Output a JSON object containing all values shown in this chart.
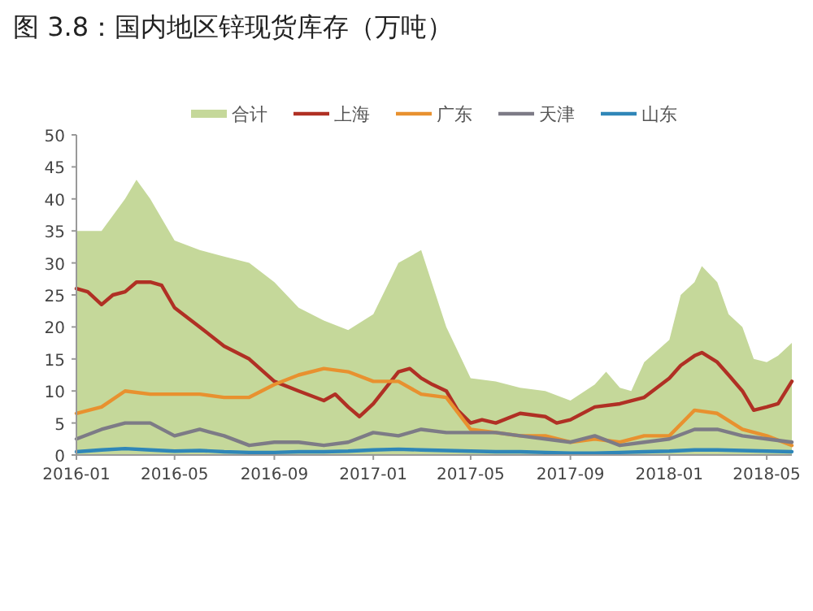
{
  "chart_data": {
    "type": "line",
    "title": "图 3.8：国内地区锌现货库存（万吨）",
    "x": [
      "2016-01",
      "2016-02",
      "2016-03",
      "2016-04",
      "2016-05",
      "2016-06",
      "2016-07",
      "2016-08",
      "2016-09",
      "2016-10",
      "2016-11",
      "2016-12",
      "2017-01",
      "2017-02",
      "2017-03",
      "2017-04",
      "2017-05",
      "2017-06",
      "2017-07",
      "2017-08",
      "2017-09",
      "2017-10",
      "2017-11",
      "2017-12",
      "2018-01",
      "2018-02",
      "2018-03",
      "2018-04",
      "2018-05",
      "2018-06"
    ],
    "series": [
      {
        "name": "合计",
        "type": "area",
        "color": "#c5d89a",
        "x": [
          "2016-01",
          "2016-02",
          "2016-03",
          "2016-03-15",
          "2016-04",
          "2016-05",
          "2016-06",
          "2016-07",
          "2016-08",
          "2016-09",
          "2016-10",
          "2016-11",
          "2016-12",
          "2017-01",
          "2017-02",
          "2017-03",
          "2017-04",
          "2017-05",
          "2017-06",
          "2017-07",
          "2017-08",
          "2017-09",
          "2017-10",
          "2017-10-15",
          "2017-11",
          "2017-11-15",
          "2017-12",
          "2018-01",
          "2018-01-15",
          "2018-02",
          "2018-02-10",
          "2018-03",
          "2018-03-15",
          "2018-04",
          "2018-04-15",
          "2018-05",
          "2018-05-15",
          "2018-06"
        ],
        "values": [
          35,
          35,
          40,
          43,
          40,
          33.5,
          32,
          31,
          30,
          27,
          23,
          21,
          19.5,
          22,
          30,
          32,
          20,
          12,
          11.5,
          10.5,
          10,
          8.5,
          11,
          13,
          10.5,
          10,
          14.5,
          18,
          25,
          27,
          29.5,
          27,
          22,
          20,
          15,
          14.5,
          15.5,
          17.5
        ]
      },
      {
        "name": "上海",
        "color": "#b03024",
        "x": [
          "2016-01",
          "2016-01-15",
          "2016-02",
          "2016-02-15",
          "2016-03",
          "2016-03-15",
          "2016-04",
          "2016-04-15",
          "2016-05",
          "2016-06",
          "2016-07",
          "2016-08",
          "2016-09",
          "2016-10",
          "2016-11",
          "2016-11-15",
          "2016-12",
          "2016-12-15",
          "2017-01",
          "2017-02",
          "2017-02-15",
          "2017-03",
          "2017-03-15",
          "2017-04",
          "2017-04-15",
          "2017-05",
          "2017-05-15",
          "2017-06",
          "2017-07",
          "2017-08",
          "2017-08-15",
          "2017-09",
          "2017-10",
          "2017-11",
          "2017-12",
          "2018-01",
          "2018-01-15",
          "2018-02",
          "2018-02-10",
          "2018-03",
          "2018-03-15",
          "2018-04",
          "2018-04-15",
          "2018-05",
          "2018-05-15",
          "2018-06"
        ],
        "values": [
          26,
          25.5,
          23.5,
          25,
          25.5,
          27,
          27,
          26.5,
          23,
          20,
          17,
          15,
          11.5,
          10,
          8.5,
          9.5,
          7.5,
          6,
          8,
          13,
          13.5,
          12,
          11,
          10,
          7,
          5,
          5.5,
          5,
          6.5,
          6,
          5,
          5.5,
          7.5,
          8,
          9,
          12,
          14,
          15.5,
          16,
          14.5,
          12.5,
          10,
          7,
          7.5,
          8,
          11.5
        ]
      },
      {
        "name": "广东",
        "color": "#e8912f",
        "values": [
          6.5,
          7.5,
          10,
          9.5,
          9.5,
          9.5,
          9,
          9,
          11,
          12.5,
          13.5,
          13,
          11.5,
          11.5,
          9.5,
          9,
          4,
          3.5,
          3,
          3,
          2,
          2.5,
          2,
          3,
          3,
          7,
          6.5,
          4,
          3,
          1.5
        ]
      },
      {
        "name": "天津",
        "color": "#7d7b86",
        "values": [
          2.5,
          4,
          5,
          5,
          3,
          4,
          3,
          1.5,
          2,
          2,
          1.5,
          2,
          3.5,
          3,
          4,
          3.5,
          3.5,
          3.5,
          3,
          2.5,
          2,
          3,
          1.5,
          2,
          2.5,
          4,
          4,
          3,
          2.5,
          2
        ]
      },
      {
        "name": "山东",
        "color": "#2f86b8",
        "values": [
          0.5,
          0.8,
          1,
          0.8,
          0.6,
          0.7,
          0.5,
          0.4,
          0.4,
          0.5,
          0.5,
          0.6,
          0.8,
          0.9,
          0.8,
          0.7,
          0.6,
          0.5,
          0.5,
          0.4,
          0.3,
          0.3,
          0.4,
          0.5,
          0.6,
          0.8,
          0.8,
          0.7,
          0.6,
          0.5
        ]
      }
    ],
    "xlim": [
      "2016-01",
      "2018-06"
    ],
    "xticks": [
      "2016-01",
      "2016-05",
      "2016-09",
      "2017-01",
      "2017-05",
      "2017-09",
      "2018-01",
      "2018-05"
    ],
    "ylim": [
      0,
      50
    ],
    "yticks": [
      0,
      5,
      10,
      15,
      20,
      25,
      30,
      35,
      40,
      45,
      50
    ],
    "legend": "top",
    "grid": false
  }
}
